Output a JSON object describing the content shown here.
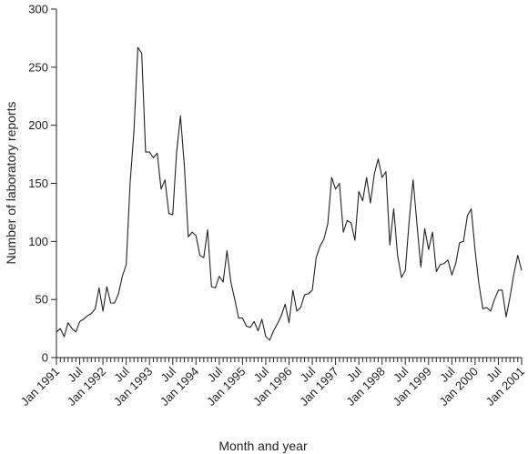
{
  "chart_data": {
    "type": "line",
    "title": "",
    "xlabel": "Month and year",
    "ylabel": "Number of laboratory reports",
    "ylim": [
      0,
      300
    ],
    "yticks": [
      0,
      50,
      100,
      150,
      200,
      250,
      300
    ],
    "x_start": "Jan 1991",
    "x_end": "Jan 2001",
    "xtick_labels": [
      {
        "month_index": 0,
        "label": "Jan 1991"
      },
      {
        "month_index": 6,
        "label": "Jul"
      },
      {
        "month_index": 12,
        "label": "Jan 1992"
      },
      {
        "month_index": 18,
        "label": "Jul"
      },
      {
        "month_index": 24,
        "label": "Jan 1993"
      },
      {
        "month_index": 30,
        "label": "Jul"
      },
      {
        "month_index": 36,
        "label": "Jan 1994"
      },
      {
        "month_index": 42,
        "label": "Jul"
      },
      {
        "month_index": 48,
        "label": "Jan 1995"
      },
      {
        "month_index": 54,
        "label": "Jul"
      },
      {
        "month_index": 60,
        "label": "Jan 1996"
      },
      {
        "month_index": 66,
        "label": "Jul"
      },
      {
        "month_index": 72,
        "label": "Jan 1997"
      },
      {
        "month_index": 78,
        "label": "Jul"
      },
      {
        "month_index": 84,
        "label": "Jan 1998"
      },
      {
        "month_index": 90,
        "label": "Jul"
      },
      {
        "month_index": 96,
        "label": "Jan 1999"
      },
      {
        "month_index": 102,
        "label": "Jul"
      },
      {
        "month_index": 108,
        "label": "Jan 2000"
      },
      {
        "month_index": 114,
        "label": "Jul"
      },
      {
        "month_index": 120,
        "label": "Jan 2001"
      }
    ],
    "grid": false,
    "series": [
      {
        "values": [
          22,
          25,
          18,
          30,
          25,
          22,
          31,
          33,
          36,
          38,
          42,
          60,
          40,
          61,
          47,
          47,
          55,
          70,
          80,
          150,
          195,
          267,
          262,
          177,
          177,
          172,
          176,
          145,
          153,
          124,
          123,
          177,
          208,
          165,
          104,
          108,
          105,
          88,
          86,
          110,
          61,
          60,
          70,
          65,
          92,
          65,
          50,
          34,
          34,
          27,
          26,
          31,
          23,
          33,
          18,
          15,
          23,
          29,
          36,
          46,
          30,
          58,
          40,
          43,
          54,
          55,
          58,
          86,
          96,
          102,
          115,
          155,
          145,
          150,
          108,
          118,
          116,
          101,
          143,
          135,
          155,
          133,
          158,
          171,
          155,
          160,
          97,
          128,
          88,
          69,
          75,
          118,
          153,
          115,
          78,
          111,
          93,
          108,
          74,
          80,
          81,
          84,
          71,
          81,
          99,
          100,
          122,
          128,
          92,
          63,
          42,
          43,
          40,
          50,
          58,
          58,
          35,
          52,
          72,
          88,
          75
        ]
      }
    ]
  }
}
